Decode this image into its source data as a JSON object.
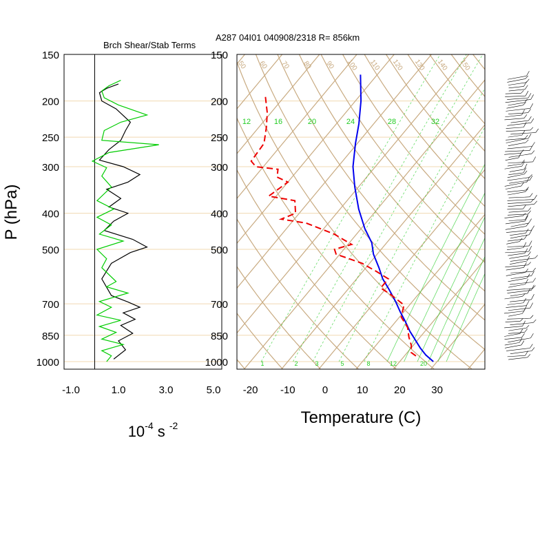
{
  "chart_data": [
    {
      "type": "line",
      "title": "Brch Shear/Stab Terms",
      "ylabel": "P (hPa)",
      "xlabel_base": "10",
      "xlabel_exp1": "-4",
      "xlabel_mid": " s ",
      "xlabel_exp2": "-2",
      "xlim": [
        -1.0,
        5.0
      ],
      "ylim": [
        1000,
        150
      ],
      "y_scale": "log",
      "pressure_ticks": [
        "150",
        "200",
        "250",
        "300",
        "400",
        "500",
        "700",
        "850",
        "1000"
      ],
      "pressure_values": [
        150,
        200,
        250,
        300,
        400,
        500,
        700,
        850,
        1000
      ],
      "x_ticks": [
        "-1.0",
        "1.0",
        "3.0",
        "5.0"
      ],
      "x_tick_values": [
        -1.0,
        1.0,
        3.0,
        5.0
      ],
      "colors": {
        "shear": "#000000",
        "stability": "#00cc00"
      },
      "series": [
        {
          "key": "shear",
          "color": "#000000",
          "points": [
            [
              1.0,
              180
            ],
            [
              0.5,
              185
            ],
            [
              0.2,
              190
            ],
            [
              0.3,
              200
            ],
            [
              0.9,
              210
            ],
            [
              1.5,
              228
            ],
            [
              1.3,
              240
            ],
            [
              1.1,
              255
            ],
            [
              0.6,
              270
            ],
            [
              0.2,
              288
            ],
            [
              1.2,
              300
            ],
            [
              1.9,
              315
            ],
            [
              1.4,
              330
            ],
            [
              0.5,
              345
            ],
            [
              1.1,
              365
            ],
            [
              0.6,
              385
            ],
            [
              1.4,
              400
            ],
            [
              0.8,
              420
            ],
            [
              0.4,
              445
            ],
            [
              1.6,
              470
            ],
            [
              2.2,
              493
            ],
            [
              1.5,
              510
            ],
            [
              0.7,
              545
            ],
            [
              0.3,
              600
            ],
            [
              0.7,
              665
            ],
            [
              1.4,
              692
            ],
            [
              1.9,
              715
            ],
            [
              1.2,
              740
            ],
            [
              1.7,
              770
            ],
            [
              1.1,
              800
            ],
            [
              1.6,
              840
            ],
            [
              1.0,
              880
            ],
            [
              1.3,
              930
            ],
            [
              0.8,
              985
            ]
          ]
        },
        {
          "key": "stability",
          "color": "#00cc00",
          "points": [
            [
              1.1,
              176
            ],
            [
              0.6,
              182
            ],
            [
              0.3,
              188
            ],
            [
              0.4,
              196
            ],
            [
              1.0,
              205
            ],
            [
              2.2,
              218
            ],
            [
              1.1,
              228
            ],
            [
              0.4,
              240
            ],
            [
              0.3,
              255
            ],
            [
              2.7,
              262
            ],
            [
              0.6,
              275
            ],
            [
              -0.1,
              290
            ],
            [
              0.5,
              302
            ],
            [
              0.3,
              318
            ],
            [
              0.7,
              340
            ],
            [
              0.1,
              370
            ],
            [
              0.8,
              390
            ],
            [
              0.1,
              410
            ],
            [
              0.7,
              430
            ],
            [
              0.2,
              455
            ],
            [
              1.2,
              475
            ],
            [
              0.1,
              500
            ],
            [
              0.5,
              530
            ],
            [
              0.3,
              560
            ],
            [
              0.9,
              610
            ],
            [
              0.5,
              630
            ],
            [
              1.4,
              655
            ],
            [
              0.2,
              690
            ],
            [
              0.7,
              715
            ],
            [
              0.1,
              750
            ],
            [
              1.1,
              775
            ],
            [
              0.2,
              805
            ],
            [
              0.9,
              835
            ],
            [
              0.3,
              870
            ],
            [
              1.2,
              900
            ],
            [
              0.3,
              935
            ],
            [
              0.7,
              965
            ],
            [
              0.5,
              1000
            ]
          ]
        }
      ]
    },
    {
      "type": "line",
      "subtype": "skew-t",
      "title": "A287 04I01 040908/2318 R= 856km",
      "xlabel": "Temperature (C)",
      "ylim": [
        1000,
        150
      ],
      "y_scale": "log",
      "pressure_ticks": [
        "150",
        "200",
        "250",
        "300",
        "400",
        "500",
        "700",
        "850",
        "1000"
      ],
      "pressure_values": [
        150,
        200,
        250,
        300,
        400,
        500,
        700,
        850,
        1000
      ],
      "x_ticks": [
        "-20",
        "-10",
        "0",
        "10",
        "20",
        "30"
      ],
      "x_tick_values": [
        -20,
        -10,
        0,
        10,
        20,
        30
      ],
      "colors": {
        "temperature": "#0000ee",
        "dewpoint": "#ee0000",
        "isotherm": "#c8aa80",
        "mixing_ratio": "#22cc22",
        "grid": "#f0d8b0"
      },
      "mixing_ratio_top_labels": [
        "12",
        "16",
        "20",
        "24",
        "28",
        "32"
      ],
      "mixing_ratio_top_values": [
        12,
        16,
        20,
        24,
        28,
        32
      ],
      "mixing_ratio_bottom_labels": [
        "1",
        "2",
        "3",
        "5",
        "8",
        "12",
        "20"
      ],
      "mixing_ratio_bottom_values": [
        1,
        2,
        3,
        5,
        8,
        12,
        20
      ],
      "theta_labels": [
        "50",
        "60",
        "70",
        "80",
        "90",
        "100",
        "110",
        "120",
        "130",
        "140",
        "150"
      ],
      "series": [
        {
          "key": "temperature",
          "points": [
            [
              -54.5,
              170
            ],
            [
              -48.5,
              200
            ],
            [
              -44.0,
              230
            ],
            [
              -40.5,
              260
            ],
            [
              -36.0,
              300
            ],
            [
              -31.0,
              340
            ],
            [
              -25.0,
              390
            ],
            [
              -19.0,
              440
            ],
            [
              -14.0,
              480
            ],
            [
              -11.0,
              515
            ],
            [
              -6.5,
              560
            ],
            [
              -3.0,
              600
            ],
            [
              1.0,
              640
            ],
            [
              5.5,
              690
            ],
            [
              9.0,
              735
            ],
            [
              12.5,
              780
            ],
            [
              16.0,
              830
            ],
            [
              19.0,
              870
            ],
            [
              22.5,
              920
            ],
            [
              25.5,
              960
            ],
            [
              29.0,
              1000
            ]
          ]
        },
        {
          "key": "dewpoint",
          "points": [
            [
              -75.0,
              195
            ],
            [
              -71.0,
              215
            ],
            [
              -68.0,
              235
            ],
            [
              -65.0,
              260
            ],
            [
              -64.5,
              290
            ],
            [
              -62.0,
              300
            ],
            [
              -55.5,
              305
            ],
            [
              -54.0,
              320
            ],
            [
              -50.0,
              330
            ],
            [
              -52.0,
              360
            ],
            [
              -44.0,
              370
            ],
            [
              -41.0,
              400
            ],
            [
              -43.5,
              415
            ],
            [
              -36.0,
              425
            ],
            [
              -26.0,
              455
            ],
            [
              -19.0,
              485
            ],
            [
              -22.5,
              500
            ],
            [
              -21.0,
              515
            ],
            [
              -12.0,
              545
            ],
            [
              -6.0,
              575
            ],
            [
              -1.5,
              600
            ],
            [
              -1.5,
              635
            ],
            [
              2.5,
              660
            ],
            [
              8.5,
              705
            ],
            [
              10.5,
              760
            ],
            [
              14.5,
              810
            ],
            [
              17.0,
              860
            ],
            [
              19.5,
              905
            ],
            [
              21.0,
              945
            ],
            [
              24.0,
              975
            ]
          ]
        }
      ]
    }
  ]
}
